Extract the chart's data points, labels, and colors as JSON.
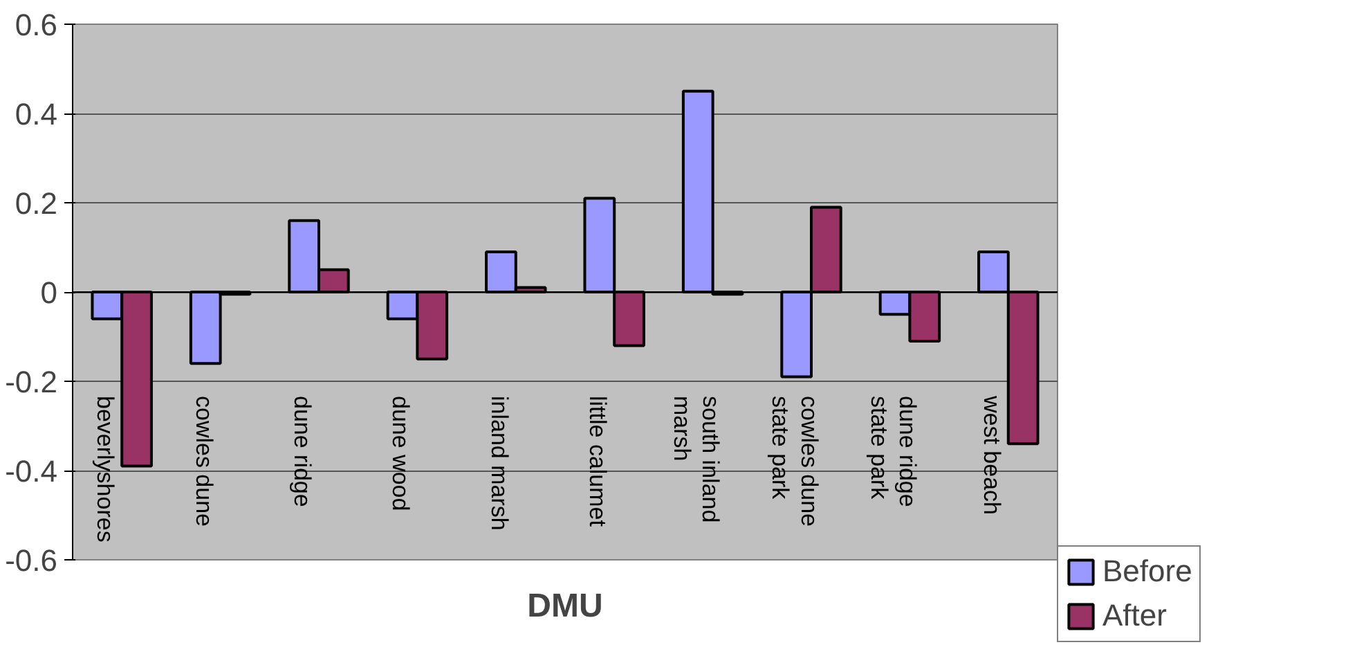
{
  "chart_data": {
    "type": "bar",
    "xlabel": "DMU",
    "categories": [
      "beverlyshores",
      "cowles dune",
      "dune ridge",
      "dune wood",
      "inland marsh",
      "little calumet",
      "south inland\nmarsh",
      "cowles dune\nstate park",
      "dune ridge\nstate park",
      "west beach"
    ],
    "series": [
      {
        "name": "Before",
        "color": "#9999ff",
        "values": [
          -0.06,
          -0.16,
          0.16,
          -0.06,
          0.09,
          0.21,
          0.45,
          -0.19,
          -0.05,
          0.09
        ]
      },
      {
        "name": "After",
        "color": "#993366",
        "values": [
          -0.39,
          -0.005,
          0.05,
          -0.15,
          0.01,
          -0.12,
          -0.005,
          0.19,
          -0.11,
          -0.34
        ]
      }
    ],
    "ylim": [
      -0.6,
      0.6
    ],
    "yticks": [
      -0.6,
      -0.4,
      -0.2,
      0,
      0.2,
      0.4,
      0.6
    ],
    "grid": "y",
    "legend": "bottom right"
  }
}
